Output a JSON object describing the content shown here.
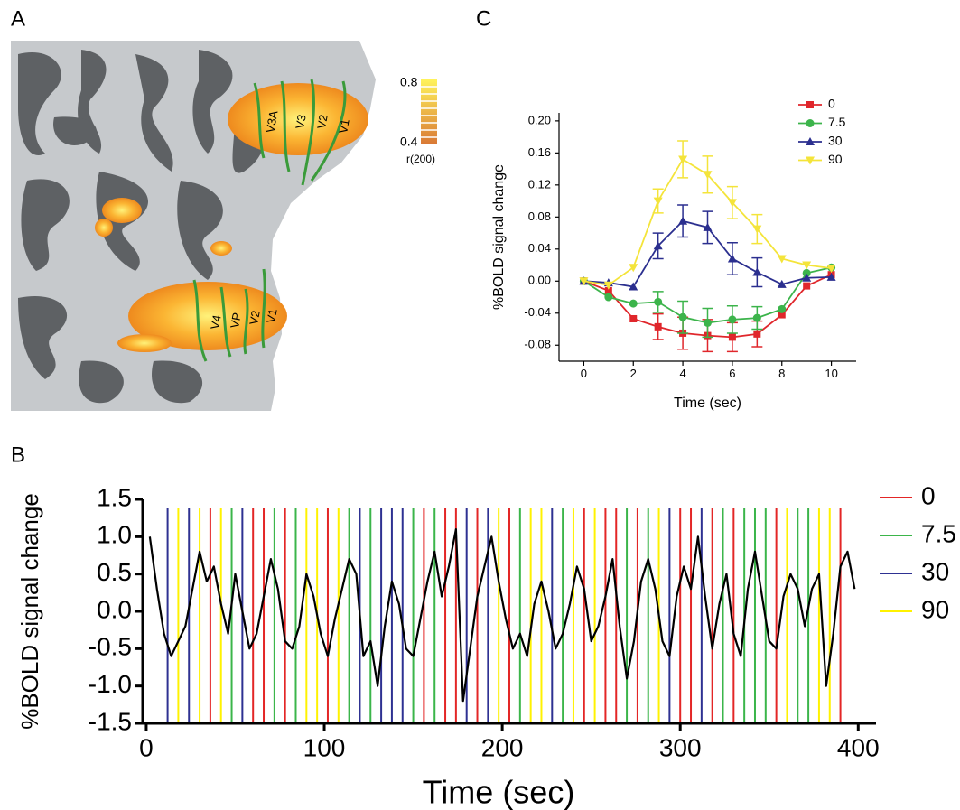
{
  "panel_labels": {
    "a": "A",
    "b": "B",
    "c": "C"
  },
  "brain": {
    "area_labels": [
      "V3A",
      "V3",
      "V2",
      "V1",
      "V4",
      "VP",
      "V2",
      "V1"
    ],
    "colorbar": {
      "max": "0.8",
      "min": "0.4",
      "label": "r(200)"
    }
  },
  "chart_data": [
    {
      "type": "line",
      "ylabel": "%BOLD signal change",
      "xlabel": "Time (sec)",
      "x": [
        0,
        1,
        2,
        3,
        4,
        5,
        6,
        7,
        8,
        9,
        10
      ],
      "xlim": [
        -1,
        11
      ],
      "xticks": [
        0,
        2,
        4,
        6,
        8,
        10
      ],
      "ylim": [
        -0.1,
        0.21
      ],
      "yticks": [
        {
          "value": -0.08,
          "label": "-0.08"
        },
        {
          "value": -0.04,
          "label": "-0.04"
        },
        {
          "value": 0,
          "label": "0.00"
        },
        {
          "value": 0.04,
          "label": "0.04"
        },
        {
          "value": 0.08,
          "label": "0.08"
        },
        {
          "value": 0.12,
          "label": "0.12"
        },
        {
          "value": 0.16,
          "label": "0.16"
        },
        {
          "value": 0.2,
          "label": "0.20"
        }
      ],
      "series": [
        {
          "name": "0",
          "color": "#e0262b",
          "marker": "square",
          "values": [
            0,
            -0.012,
            -0.047,
            -0.057,
            -0.065,
            -0.068,
            -0.07,
            -0.066,
            -0.042,
            -0.006,
            0.008
          ],
          "errors": [
            null,
            null,
            null,
            0.016,
            0.02,
            0.02,
            0.018,
            0.016,
            null,
            null,
            null
          ]
        },
        {
          "name": "7.5",
          "color": "#3cb44b",
          "marker": "circle",
          "values": [
            0,
            -0.02,
            -0.028,
            -0.026,
            -0.045,
            -0.052,
            -0.048,
            -0.046,
            -0.035,
            0.01,
            0.017
          ],
          "errors": [
            null,
            null,
            null,
            0.013,
            0.02,
            0.018,
            0.017,
            0.014,
            null,
            null,
            null
          ]
        },
        {
          "name": "30",
          "color": "#2b2f8f",
          "marker": "triangle-up",
          "values": [
            0,
            -0.002,
            -0.007,
            0.044,
            0.075,
            0.067,
            0.028,
            0.011,
            -0.004,
            0.004,
            0.005
          ],
          "errors": [
            null,
            null,
            null,
            0.016,
            0.02,
            0.02,
            0.02,
            0.018,
            null,
            null,
            null
          ]
        },
        {
          "name": "90",
          "color": "#f4e43a",
          "marker": "triangle-down",
          "values": [
            0,
            -0.005,
            0.017,
            0.1,
            0.152,
            0.133,
            0.098,
            0.065,
            0.028,
            0.02,
            0.016
          ],
          "errors": [
            null,
            null,
            null,
            0.015,
            0.023,
            0.023,
            0.02,
            0.018,
            null,
            null,
            null
          ]
        }
      ]
    },
    {
      "type": "timeseries",
      "ylabel": "%BOLD signal change",
      "xlabel": "Time (sec)",
      "xlim": [
        -2,
        410
      ],
      "xticks": [
        0,
        100,
        200,
        300,
        400
      ],
      "ylim": [
        -1.5,
        1.5
      ],
      "yticks": [
        -1.5,
        {
          "value": -1,
          "label": "-1.0"
        },
        -0.5,
        {
          "value": 0,
          "label": "0.0"
        },
        0.5,
        {
          "value": 1,
          "label": "1.0"
        },
        1.5
      ],
      "trace": {
        "color": "#000000",
        "x": [
          2,
          6,
          10,
          14,
          18,
          22,
          26,
          30,
          34,
          38,
          42,
          46,
          50,
          54,
          58,
          62,
          66,
          70,
          74,
          78,
          82,
          86,
          90,
          94,
          98,
          102,
          106,
          110,
          114,
          118,
          122,
          126,
          130,
          134,
          138,
          142,
          146,
          150,
          154,
          158,
          162,
          166,
          170,
          174,
          178,
          182,
          186,
          190,
          194,
          198,
          202,
          206,
          210,
          214,
          218,
          222,
          226,
          230,
          234,
          238,
          242,
          246,
          250,
          254,
          258,
          262,
          266,
          270,
          274,
          278,
          282,
          286,
          290,
          294,
          298,
          302,
          306,
          310,
          314,
          318,
          322,
          326,
          330,
          334,
          338,
          342,
          346,
          350,
          354,
          358,
          362,
          366,
          370,
          374,
          378,
          382,
          386,
          390,
          394,
          398
        ],
        "values": [
          1.0,
          0.3,
          -0.3,
          -0.6,
          -0.4,
          -0.2,
          0.3,
          0.8,
          0.4,
          0.6,
          0.1,
          -0.3,
          0.5,
          0.0,
          -0.5,
          -0.3,
          0.2,
          0.7,
          0.3,
          -0.4,
          -0.5,
          -0.2,
          0.5,
          0.2,
          -0.3,
          -0.6,
          -0.1,
          0.3,
          0.7,
          0.5,
          -0.6,
          -0.4,
          -1.0,
          -0.2,
          0.4,
          0.1,
          -0.5,
          -0.6,
          -0.1,
          0.4,
          0.8,
          0.2,
          0.6,
          1.1,
          -1.2,
          -0.5,
          0.2,
          0.6,
          1.0,
          0.4,
          -0.1,
          -0.5,
          -0.3,
          -0.6,
          0.1,
          0.4,
          0.0,
          -0.5,
          -0.3,
          0.1,
          0.6,
          0.3,
          -0.4,
          -0.2,
          0.2,
          0.7,
          -0.2,
          -0.9,
          -0.4,
          0.4,
          0.7,
          0.3,
          -0.4,
          -0.6,
          0.2,
          0.6,
          0.3,
          1.0,
          0.2,
          -0.5,
          0.1,
          0.5,
          -0.3,
          -0.6,
          0.3,
          0.8,
          0.2,
          -0.4,
          -0.5,
          0.2,
          0.5,
          0.3,
          -0.2,
          0.3,
          0.5,
          -1.0,
          -0.3,
          0.6,
          0.8,
          0.3
        ]
      },
      "series": [
        {
          "name": "0",
          "color": "#e32626",
          "onsets": [
            36,
            60,
            66,
            78,
            102,
            156,
            168,
            174,
            186,
            204,
            246,
            258,
            264,
            276,
            300,
            306,
            318,
            330,
            354,
            390
          ]
        },
        {
          "name": "7.5",
          "color": "#3bb54a",
          "onsets": [
            48,
            72,
            84,
            114,
            126,
            150,
            162,
            210,
            234,
            270,
            282,
            324,
            336,
            342,
            348,
            366,
            372
          ]
        },
        {
          "name": "30",
          "color": "#2e3192",
          "onsets": [
            12,
            24,
            54,
            120,
            132,
            138,
            144,
            180,
            192,
            228,
            294,
            312
          ]
        },
        {
          "name": "90",
          "color": "#fff200",
          "onsets": [
            18,
            30,
            42,
            90,
            96,
            108,
            198,
            216,
            222,
            240,
            252,
            288,
            360,
            378,
            384
          ]
        }
      ]
    }
  ]
}
